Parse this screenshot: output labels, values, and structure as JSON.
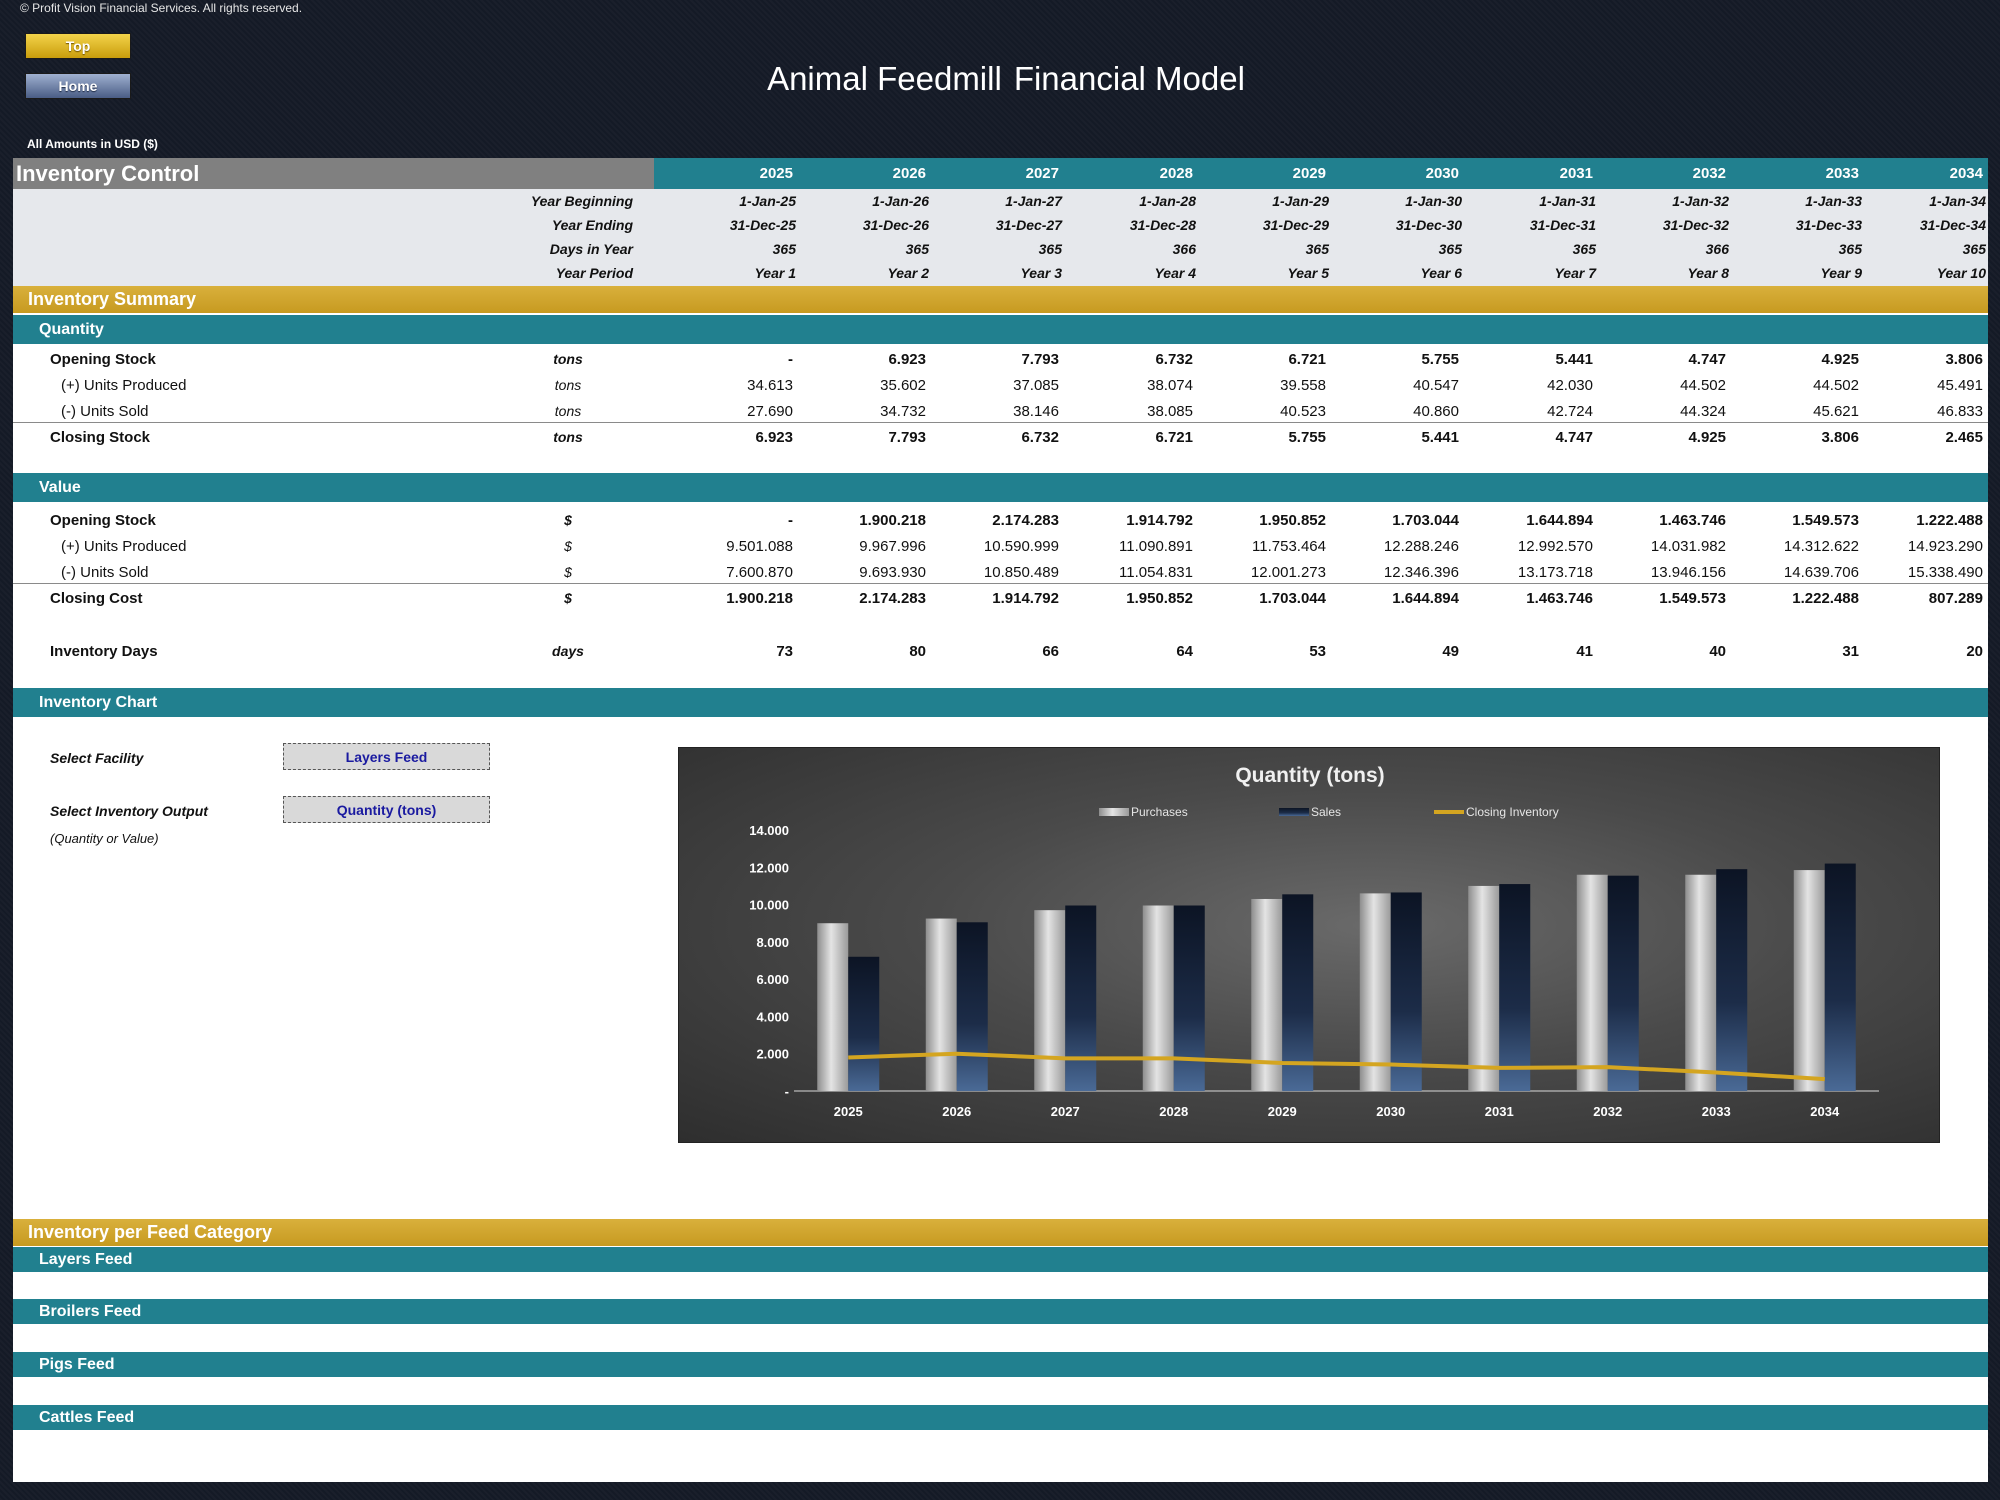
{
  "copyright": "© Profit Vision Financial Services. All rights reserved.",
  "nav": {
    "top_label": "Top",
    "home_label": "Home"
  },
  "app_title": {
    "part1": "Animal Feedmill",
    "part2": "Financial Model"
  },
  "amounts_note": "All Amounts in  USD ($)",
  "section_title": "Inventory Control",
  "years": [
    "2025",
    "2026",
    "2027",
    "2028",
    "2029",
    "2030",
    "2031",
    "2032",
    "2033",
    "2034"
  ],
  "timeline": {
    "year_beginning": {
      "label": "Year Beginning",
      "values": [
        "1-Jan-25",
        "1-Jan-26",
        "1-Jan-27",
        "1-Jan-28",
        "1-Jan-29",
        "1-Jan-30",
        "1-Jan-31",
        "1-Jan-32",
        "1-Jan-33",
        "1-Jan-34"
      ]
    },
    "year_ending": {
      "label": "Year Ending",
      "values": [
        "31-Dec-25",
        "31-Dec-26",
        "31-Dec-27",
        "31-Dec-28",
        "31-Dec-29",
        "31-Dec-30",
        "31-Dec-31",
        "31-Dec-32",
        "31-Dec-33",
        "31-Dec-34"
      ]
    },
    "days_in_year": {
      "label": "Days in Year",
      "values": [
        "365",
        "365",
        "365",
        "366",
        "365",
        "365",
        "365",
        "366",
        "365",
        "365"
      ]
    },
    "year_period": {
      "label": "Year Period",
      "values": [
        "Year 1",
        "Year 2",
        "Year 3",
        "Year 4",
        "Year 5",
        "Year 6",
        "Year 7",
        "Year 8",
        "Year 9",
        "Year 10"
      ]
    }
  },
  "summary_title": "Inventory Summary",
  "quantity": {
    "title": "Quantity",
    "opening": {
      "label": "Opening Stock",
      "unit": "tons",
      "values": [
        "-",
        "6.923",
        "7.793",
        "6.732",
        "6.721",
        "5.755",
        "5.441",
        "4.747",
        "4.925",
        "3.806"
      ]
    },
    "produced": {
      "label": "(+) Units Produced",
      "unit": "tons",
      "values": [
        "34.613",
        "35.602",
        "37.085",
        "38.074",
        "39.558",
        "40.547",
        "42.030",
        "44.502",
        "44.502",
        "45.491"
      ]
    },
    "sold": {
      "label": "(-) Units Sold",
      "unit": "tons",
      "values": [
        "27.690",
        "34.732",
        "38.146",
        "38.085",
        "40.523",
        "40.860",
        "42.724",
        "44.324",
        "45.621",
        "46.833"
      ]
    },
    "closing": {
      "label": "Closing Stock",
      "unit": "tons",
      "values": [
        "6.923",
        "7.793",
        "6.732",
        "6.721",
        "5.755",
        "5.441",
        "4.747",
        "4.925",
        "3.806",
        "2.465"
      ]
    }
  },
  "value": {
    "title": "Value",
    "opening": {
      "label": "Opening Stock",
      "unit": "$",
      "values": [
        "-",
        "1.900.218",
        "2.174.283",
        "1.914.792",
        "1.950.852",
        "1.703.044",
        "1.644.894",
        "1.463.746",
        "1.549.573",
        "1.222.488"
      ]
    },
    "produced": {
      "label": "(+) Units Produced",
      "unit": "$",
      "values": [
        "9.501.088",
        "9.967.996",
        "10.590.999",
        "11.090.891",
        "11.753.464",
        "12.288.246",
        "12.992.570",
        "14.031.982",
        "14.312.622",
        "14.923.290"
      ]
    },
    "sold": {
      "label": "(-) Units Sold",
      "unit": "$",
      "values": [
        "7.600.870",
        "9.693.930",
        "10.850.489",
        "11.054.831",
        "12.001.273",
        "12.346.396",
        "13.173.718",
        "13.946.156",
        "14.639.706",
        "15.338.490"
      ]
    },
    "closing": {
      "label": "Closing Cost",
      "unit": "$",
      "values": [
        "1.900.218",
        "2.174.283",
        "1.914.792",
        "1.950.852",
        "1.703.044",
        "1.644.894",
        "1.463.746",
        "1.549.573",
        "1.222.488",
        "807.289"
      ]
    }
  },
  "inventory_days": {
    "label": "Inventory Days",
    "unit": "days",
    "values": [
      "73",
      "80",
      "66",
      "64",
      "53",
      "49",
      "41",
      "40",
      "31",
      "20"
    ]
  },
  "chart_section": {
    "title": "Inventory Chart",
    "facility_label": "Select Facility",
    "facility_value": "Layers Feed",
    "output_label": "Select Inventory Output",
    "output_value": "Quantity (tons)",
    "output_hint": "(Quantity or Value)"
  },
  "per_category": {
    "title": "Inventory per Feed Category",
    "categories": [
      "Layers Feed",
      "Broilers Feed",
      "Pigs Feed",
      "Cattles Feed"
    ]
  },
  "colors": {
    "teal": "#21808f",
    "gold": "#c99d24",
    "line": "#d4a520",
    "purchases": "#c8c8c8",
    "sales": "#1c2a40"
  },
  "chart_data": {
    "type": "bar",
    "title": "Quantity (tons)",
    "categories": [
      "2025",
      "2026",
      "2027",
      "2028",
      "2029",
      "2030",
      "2031",
      "2032",
      "2033",
      "2034"
    ],
    "y_ticks": [
      "-",
      "2.000",
      "4.000",
      "6.000",
      "8.000",
      "10.000",
      "12.000",
      "14.000"
    ],
    "ylim": [
      0,
      14000
    ],
    "legend_position": "top",
    "series": [
      {
        "name": "Purchases",
        "kind": "bar",
        "values": [
          9000,
          9250,
          9700,
          9950,
          10300,
          10600,
          11000,
          11600,
          11600,
          11850
        ]
      },
      {
        "name": "Sales",
        "kind": "bar",
        "values": [
          7200,
          9050,
          9950,
          9950,
          10550,
          10650,
          11100,
          11550,
          11900,
          12200
        ]
      },
      {
        "name": "Closing Inventory",
        "kind": "line",
        "values": [
          1800,
          2000,
          1750,
          1750,
          1500,
          1420,
          1240,
          1280,
          990,
          640
        ]
      }
    ]
  }
}
